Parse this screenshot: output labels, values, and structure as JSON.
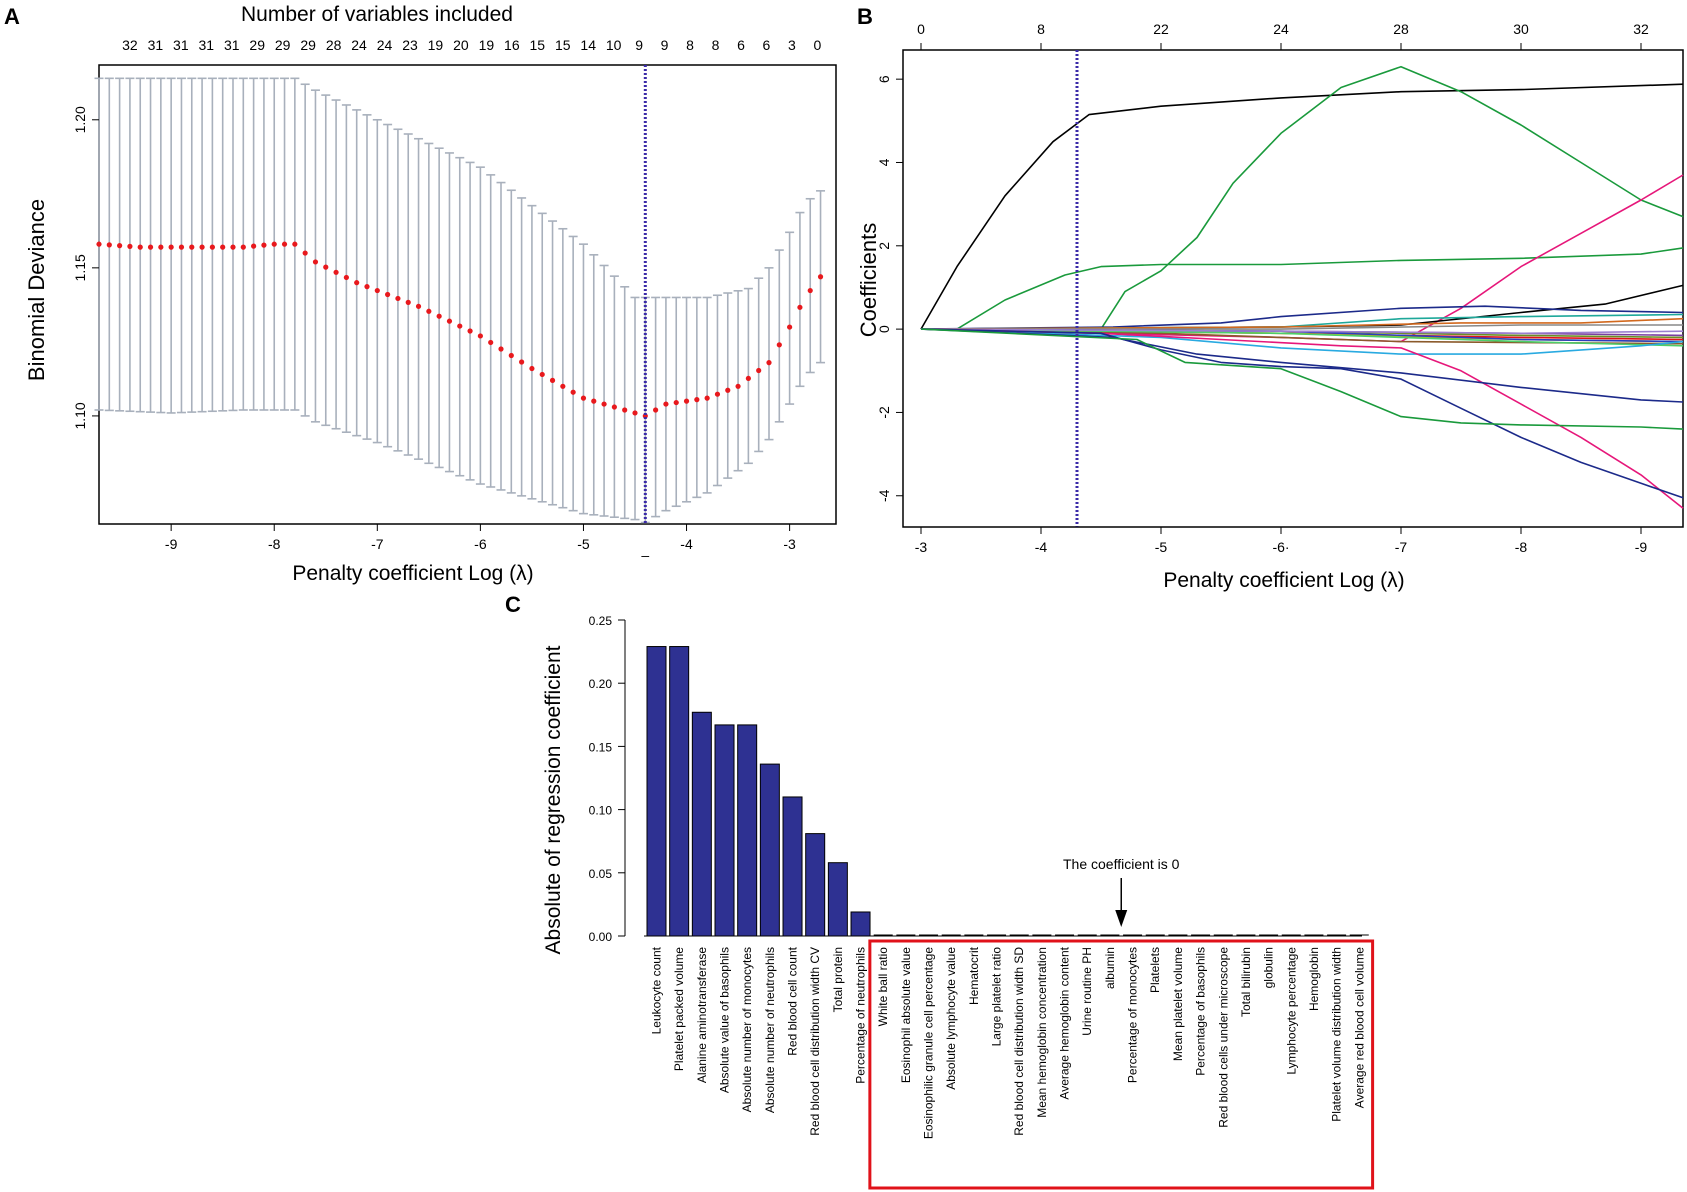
{
  "panels": {
    "a": "A",
    "b": "B",
    "c": "C"
  },
  "colors": {
    "errorbar": "#a8b0bc",
    "cvpoint": "#e8191d",
    "vline": "#3a2aa8",
    "bar": "#2e3192",
    "highlight": "#e0121a"
  },
  "chart_data": [
    {
      "id": "A",
      "type": "scatter",
      "title": "Number of variables included",
      "xlabel": "Penalty coefficient Log (λ)",
      "ylabel": "Binomial Deviance",
      "xlim": [
        -9.7,
        -2.55
      ],
      "ylim": [
        1.0635,
        1.2185
      ],
      "xticks": [
        -9,
        -8,
        -7,
        -6,
        -5,
        -4,
        -3
      ],
      "yticks": [
        1.1,
        1.15,
        1.2
      ],
      "ytick_labels": [
        "1.10",
        "1.15",
        "1.20"
      ],
      "top_ticks": [
        "32",
        "31",
        "31",
        "31",
        "31",
        "29",
        "29",
        "29",
        "28",
        "24",
        "24",
        "23",
        "19",
        "20",
        "19",
        "16",
        "15",
        "15",
        "14",
        "10",
        "9",
        "9",
        "8",
        "8",
        "6",
        "6",
        "3",
        "0"
      ],
      "top_tick_start": -9.4,
      "top_tick_step": 0.247,
      "vline_x": -4.4,
      "vline_label": "–",
      "x_start": -9.7,
      "x_step": 0.1,
      "n_points": 72,
      "mean_profile": [
        [
          -9.7,
          1.158
        ],
        [
          -9.3,
          1.157
        ],
        [
          -8.7,
          1.157
        ],
        [
          -8.3,
          1.157
        ],
        [
          -8.0,
          1.158
        ],
        [
          -7.8,
          1.158
        ],
        [
          -7.6,
          1.152
        ],
        [
          -7.2,
          1.145
        ],
        [
          -6.6,
          1.137
        ],
        [
          -6.0,
          1.127
        ],
        [
          -5.5,
          1.116
        ],
        [
          -5.0,
          1.106
        ],
        [
          -4.6,
          1.102
        ],
        [
          -4.4,
          1.1
        ],
        [
          -4.2,
          1.104
        ],
        [
          -3.8,
          1.106
        ],
        [
          -3.5,
          1.11
        ],
        [
          -3.2,
          1.118
        ],
        [
          -3.0,
          1.13
        ],
        [
          -2.85,
          1.14
        ],
        [
          -2.7,
          1.147
        ]
      ],
      "upper_profile": [
        [
          -9.7,
          1.214
        ],
        [
          -9.0,
          1.214
        ],
        [
          -8.3,
          1.214
        ],
        [
          -7.8,
          1.214
        ],
        [
          -7.6,
          1.21
        ],
        [
          -7.0,
          1.2
        ],
        [
          -6.0,
          1.184
        ],
        [
          -5.0,
          1.158
        ],
        [
          -4.5,
          1.14
        ],
        [
          -4.4,
          1.14
        ],
        [
          -4.2,
          1.14
        ],
        [
          -3.8,
          1.14
        ],
        [
          -3.4,
          1.143
        ],
        [
          -3.2,
          1.15
        ],
        [
          -3.0,
          1.162
        ],
        [
          -2.85,
          1.172
        ],
        [
          -2.7,
          1.176
        ]
      ],
      "lower_profile": [
        [
          -9.7,
          1.102
        ],
        [
          -9.0,
          1.101
        ],
        [
          -8.3,
          1.102
        ],
        [
          -7.8,
          1.102
        ],
        [
          -7.6,
          1.098
        ],
        [
          -7.0,
          1.091
        ],
        [
          -6.0,
          1.077
        ],
        [
          -5.0,
          1.067
        ],
        [
          -4.5,
          1.065
        ],
        [
          -4.4,
          1.064
        ],
        [
          -4.2,
          1.068
        ],
        [
          -3.8,
          1.074
        ],
        [
          -3.4,
          1.084
        ],
        [
          -3.2,
          1.092
        ],
        [
          -3.0,
          1.104
        ],
        [
          -2.85,
          1.113
        ],
        [
          -2.7,
          1.118
        ]
      ]
    },
    {
      "id": "B",
      "type": "line",
      "xlabel": "Penalty coefficient Log (λ)",
      "ylabel": "Coefficients",
      "xlim": [
        -2.85,
        -9.35
      ],
      "ylim": [
        -4.75,
        6.7
      ],
      "xticks": [
        -3,
        -4,
        -5,
        -6,
        -7,
        -8,
        -9
      ],
      "xtick_labels": [
        "-3",
        "-4",
        "-5",
        "-6·",
        "-7",
        "-8",
        "-9"
      ],
      "yticks": [
        -4,
        -2,
        0,
        2,
        4,
        6
      ],
      "top_tick_positions": [
        -3,
        -4,
        -5,
        -6,
        -7,
        -8,
        -9
      ],
      "top_ticks": [
        "0",
        "8",
        "22",
        "24",
        "28",
        "30",
        "32"
      ],
      "vline_x": -4.3,
      "series": [
        {
          "name": "black-1",
          "color": "#000000",
          "points": [
            [
              -3.0,
              0
            ],
            [
              -3.3,
              1.5
            ],
            [
              -3.7,
              3.2
            ],
            [
              -4.1,
              4.5
            ],
            [
              -4.4,
              5.15
            ],
            [
              -5.0,
              5.35
            ],
            [
              -6.0,
              5.55
            ],
            [
              -7.0,
              5.7
            ],
            [
              -8.0,
              5.75
            ],
            [
              -9.35,
              5.88
            ]
          ]
        },
        {
          "name": "green-peak",
          "color": "#1a9a3c",
          "points": [
            [
              -3.0,
              0
            ],
            [
              -4.5,
              0
            ],
            [
              -4.7,
              0.9
            ],
            [
              -5.0,
              1.4
            ],
            [
              -5.3,
              2.2
            ],
            [
              -5.6,
              3.5
            ],
            [
              -6.0,
              4.7
            ],
            [
              -6.5,
              5.8
            ],
            [
              -7.0,
              6.3
            ],
            [
              -7.5,
              5.7
            ],
            [
              -8.0,
              4.9
            ],
            [
              -8.5,
              4.0
            ],
            [
              -9.0,
              3.1
            ],
            [
              -9.35,
              2.7
            ]
          ]
        },
        {
          "name": "green-mid",
          "color": "#1a9a3c",
          "points": [
            [
              -3.0,
              0
            ],
            [
              -3.3,
              0
            ],
            [
              -3.7,
              0.7
            ],
            [
              -4.2,
              1.3
            ],
            [
              -4.5,
              1.5
            ],
            [
              -5.0,
              1.55
            ],
            [
              -6.0,
              1.55
            ],
            [
              -7.0,
              1.65
            ],
            [
              -8.0,
              1.7
            ],
            [
              -9.0,
              1.8
            ],
            [
              -9.35,
              1.95
            ]
          ]
        },
        {
          "name": "magenta-up",
          "color": "#e6177a",
          "points": [
            [
              -3.0,
              0
            ],
            [
              -6.0,
              -0.2
            ],
            [
              -7.0,
              -0.3
            ],
            [
              -7.5,
              0.5
            ],
            [
              -8.0,
              1.5
            ],
            [
              -8.5,
              2.3
            ],
            [
              -9.0,
              3.1
            ],
            [
              -9.35,
              3.7
            ]
          ]
        },
        {
          "name": "black-2",
          "color": "#000000",
          "points": [
            [
              -3.0,
              0
            ],
            [
              -6.0,
              0.05
            ],
            [
              -7.0,
              0.1
            ],
            [
              -8.0,
              0.4
            ],
            [
              -8.7,
              0.6
            ],
            [
              -9.35,
              1.05
            ]
          ]
        },
        {
          "name": "navy-top",
          "color": "#1c2a8a",
          "points": [
            [
              -3.0,
              0
            ],
            [
              -4.6,
              0.05
            ],
            [
              -5.5,
              0.15
            ],
            [
              -6.0,
              0.3
            ],
            [
              -7.0,
              0.5
            ],
            [
              -7.7,
              0.55
            ],
            [
              -8.5,
              0.45
            ],
            [
              -9.35,
              0.4
            ]
          ]
        },
        {
          "name": "teal",
          "color": "#1ea89a",
          "points": [
            [
              -3.0,
              0
            ],
            [
              -6.0,
              0.05
            ],
            [
              -7.0,
              0.25
            ],
            [
              -8.0,
              0.3
            ],
            [
              -9.35,
              0.35
            ]
          ]
        },
        {
          "name": "orange",
          "color": "#d2691e",
          "points": [
            [
              -3.0,
              0
            ],
            [
              -6.0,
              0.05
            ],
            [
              -7.5,
              0.15
            ],
            [
              -8.5,
              0.15
            ],
            [
              -9.35,
              0.25
            ]
          ]
        },
        {
          "name": "gray",
          "color": "#888888",
          "points": [
            [
              -3.0,
              0
            ],
            [
              -6.0,
              0.0
            ],
            [
              -8.0,
              0.1
            ],
            [
              -9.35,
              0.1
            ]
          ]
        },
        {
          "name": "purple",
          "color": "#7a3fa0",
          "points": [
            [
              -3.0,
              0
            ],
            [
              -6.0,
              -0.05
            ],
            [
              -8.0,
              -0.1
            ],
            [
              -9.35,
              -0.15
            ]
          ]
        },
        {
          "name": "red",
          "color": "#e0121a",
          "points": [
            [
              -3.0,
              0
            ],
            [
              -6.0,
              -0.1
            ],
            [
              -8.0,
              -0.2
            ],
            [
              -9.35,
              -0.25
            ]
          ]
        },
        {
          "name": "yellow",
          "color": "#d4b80a",
          "points": [
            [
              -3.0,
              0
            ],
            [
              -6.0,
              -0.1
            ],
            [
              -8.0,
              -0.25
            ],
            [
              -9.35,
              -0.3
            ]
          ]
        },
        {
          "name": "brown",
          "color": "#8b5a2b",
          "points": [
            [
              -3.0,
              0
            ],
            [
              -5.0,
              -0.1
            ],
            [
              -7.0,
              -0.3
            ],
            [
              -9.35,
              -0.35
            ]
          ]
        },
        {
          "name": "olive",
          "color": "#6b8e23",
          "points": [
            [
              -3.0,
              0
            ],
            [
              -6.0,
              -0.05
            ],
            [
              -8.0,
              -0.15
            ],
            [
              -9.35,
              -0.2
            ]
          ]
        },
        {
          "name": "blue-2",
          "color": "#2a3ec0",
          "points": [
            [
              -3.0,
              0
            ],
            [
              -6.0,
              -0.05
            ],
            [
              -8.0,
              -0.25
            ],
            [
              -9.35,
              -0.3
            ]
          ]
        },
        {
          "name": "light-green",
          "color": "#4ccf6a",
          "points": [
            [
              -3.0,
              0
            ],
            [
              -6.0,
              -0.1
            ],
            [
              -8.0,
              -0.3
            ],
            [
              -9.35,
              -0.4
            ]
          ]
        },
        {
          "name": "lavender",
          "color": "#9b7fd0",
          "points": [
            [
              -3.0,
              0
            ],
            [
              -6.0,
              -0.05
            ],
            [
              -8.0,
              -0.1
            ],
            [
              -9.35,
              -0.05
            ]
          ]
        },
        {
          "name": "light-blue",
          "color": "#29aae1",
          "points": [
            [
              -3.0,
              0
            ],
            [
              -5.0,
              -0.2
            ],
            [
              -6.0,
              -0.45
            ],
            [
              -7.0,
              -0.6
            ],
            [
              -8.0,
              -0.6
            ],
            [
              -9.0,
              -0.4
            ],
            [
              -9.35,
              -0.3
            ]
          ]
        },
        {
          "name": "magenta-down",
          "color": "#e6177a",
          "points": [
            [
              -3.0,
              0
            ],
            [
              -4.5,
              -0.1
            ],
            [
              -5.5,
              -0.25
            ],
            [
              -6.5,
              -0.4
            ],
            [
              -7.0,
              -0.45
            ],
            [
              -7.5,
              -1.0
            ],
            [
              -8.0,
              -1.8
            ],
            [
              -8.5,
              -2.6
            ],
            [
              -9.0,
              -3.5
            ],
            [
              -9.35,
              -4.3
            ]
          ]
        },
        {
          "name": "navy-down",
          "color": "#1c2a8a",
          "points": [
            [
              -3.0,
              0
            ],
            [
              -4.5,
              -0.1
            ],
            [
              -5.0,
              -0.5
            ],
            [
              -5.5,
              -0.8
            ],
            [
              -6.0,
              -0.9
            ],
            [
              -6.5,
              -0.95
            ],
            [
              -7.0,
              -1.2
            ],
            [
              -7.5,
              -1.9
            ],
            [
              -8.0,
              -2.6
            ],
            [
              -8.5,
              -3.2
            ],
            [
              -9.0,
              -3.7
            ],
            [
              -9.35,
              -4.05
            ]
          ]
        },
        {
          "name": "navy-mid",
          "color": "#1c2a8a",
          "points": [
            [
              -3.0,
              0
            ],
            [
              -4.6,
              -0.2
            ],
            [
              -5.3,
              -0.6
            ],
            [
              -6.0,
              -0.8
            ],
            [
              -7.0,
              -1.05
            ],
            [
              -8.0,
              -1.4
            ],
            [
              -9.0,
              -1.7
            ],
            [
              -9.35,
              -1.75
            ]
          ]
        },
        {
          "name": "green-low",
          "color": "#1a9a3c",
          "points": [
            [
              -3.0,
              0
            ],
            [
              -4.8,
              -0.25
            ],
            [
              -5.2,
              -0.8
            ],
            [
              -6.0,
              -0.95
            ],
            [
              -6.5,
              -1.5
            ],
            [
              -7.0,
              -2.1
            ],
            [
              -7.5,
              -2.25
            ],
            [
              -8.0,
              -2.3
            ],
            [
              -9.0,
              -2.35
            ],
            [
              -9.35,
              -2.4
            ]
          ]
        }
      ]
    },
    {
      "id": "C",
      "type": "bar",
      "ylabel": "Absolute  of regression coefficient",
      "ylim": [
        0,
        0.25
      ],
      "yticks": [
        0.0,
        0.05,
        0.1,
        0.15,
        0.2,
        0.25
      ],
      "ytick_labels": [
        "0.00",
        "0.05",
        "0.10",
        "0.15",
        "0.20",
        "0.25"
      ],
      "annotation": "The coefficient is 0",
      "annotation_category": "Percentage of monocytes",
      "categories": [
        "Leukocyte count",
        "Platelet packed volume",
        "Alanine aminotransferase",
        "Absolute value of basophils",
        "Absolute number of monocytes",
        "Absolute number of neutrophils",
        "Red blood cell count",
        "Red blood cell distribution width CV",
        "Total protein",
        "Percentage of neutrophils",
        "White ball ratio",
        "Eosinophil absolute value",
        "Eosinophilic granule cell percentage",
        "Absolute lymphocyte value",
        "Hematocrit",
        "Large platelet ratio",
        "Red blood cell distribution width SD",
        "Mean hemoglobin concentration",
        "Average hemoglobin content",
        "Urine routine PH",
        "albumin",
        "Percentage of monocytes",
        "Platelets",
        "Mean platelet volume",
        "Percentage of basophils",
        "Red blood cells under microscope",
        "Total bilirubin",
        "globulin",
        "Lymphocyte percentage",
        "Hemoglobin",
        "Platelet volume distribution width",
        "Average red blood cell volume"
      ],
      "values": [
        0.229,
        0.229,
        0.177,
        0.167,
        0.167,
        0.136,
        0.11,
        0.081,
        0.058,
        0.019,
        0,
        0,
        0,
        0,
        0,
        0,
        0,
        0,
        0,
        0,
        0,
        0,
        0,
        0,
        0,
        0,
        0,
        0,
        0,
        0,
        0,
        0
      ],
      "zero_group_start": 10
    }
  ]
}
